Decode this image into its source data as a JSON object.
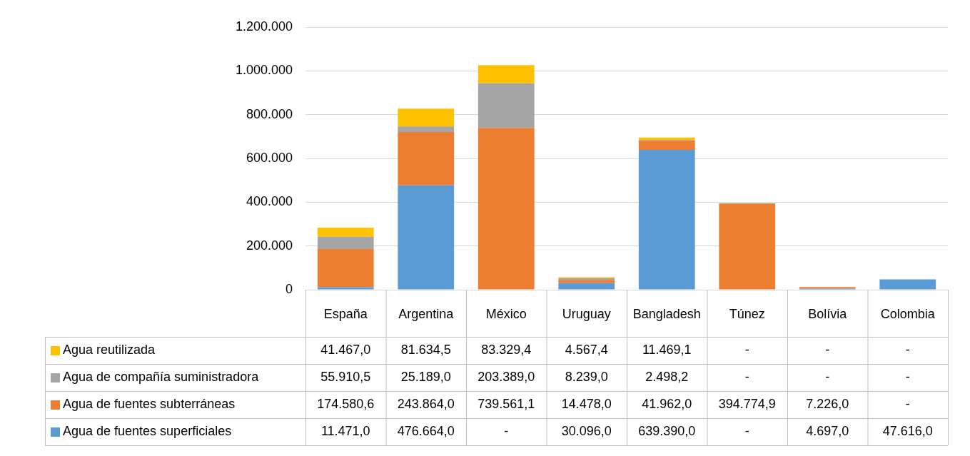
{
  "chart_data": {
    "type": "bar",
    "stacked": true,
    "categories": [
      "España",
      "Argentina",
      "México",
      "Uruguay",
      "Bangladesh",
      "Túnez",
      "Bolívia",
      "Colombia"
    ],
    "series": [
      {
        "name": "Agua de fuentes superficiales",
        "color": "#5b9bd5",
        "values": [
          11471.0,
          476664.0,
          null,
          30096.0,
          639390.0,
          null,
          4697.0,
          47616.0
        ],
        "value_labels": [
          "11.471,0",
          "476.664,0",
          "-",
          "30.096,0",
          "639.390,0",
          "-",
          "4.697,0",
          "47.616,0"
        ]
      },
      {
        "name": "Agua de fuentes subterráneas",
        "color": "#ed7d31",
        "values": [
          174580.6,
          243864.0,
          739561.1,
          14478.0,
          41962.0,
          394774.9,
          7226.0,
          null
        ],
        "value_labels": [
          "174.580,6",
          "243.864,0",
          "739.561,1",
          "14.478,0",
          "41.962,0",
          "394.774,9",
          "7.226,0",
          "-"
        ]
      },
      {
        "name": "Agua de compañía suministradora",
        "color": "#a5a5a5",
        "values": [
          55910.5,
          25189.0,
          203389.0,
          8239.0,
          2498.2,
          null,
          null,
          null
        ],
        "value_labels": [
          "55.910,5",
          "25.189,0",
          "203.389,0",
          "8.239,0",
          "2.498,2",
          "-",
          "-",
          "-"
        ]
      },
      {
        "name": "Agua reutilizada",
        "color": "#ffc000",
        "values": [
          41467.0,
          81634.5,
          83329.4,
          4567.4,
          11469.1,
          null,
          null,
          null
        ],
        "value_labels": [
          "41.467,0",
          "81.634,5",
          "83.329,4",
          "4.567,4",
          "11.469,1",
          "-",
          "-",
          "-"
        ]
      }
    ],
    "ylim": [
      0,
      1200000
    ],
    "yticks": [
      {
        "value": 0,
        "label": "0"
      },
      {
        "value": 200000,
        "label": "200.000"
      },
      {
        "value": 400000,
        "label": "400.000"
      },
      {
        "value": 600000,
        "label": "600.000"
      },
      {
        "value": 800000,
        "label": "800.000"
      },
      {
        "value": 1000000,
        "label": "1.000.000"
      },
      {
        "value": 1200000,
        "label": "1.200.000"
      }
    ],
    "grid": "y",
    "legend": "bottom"
  }
}
